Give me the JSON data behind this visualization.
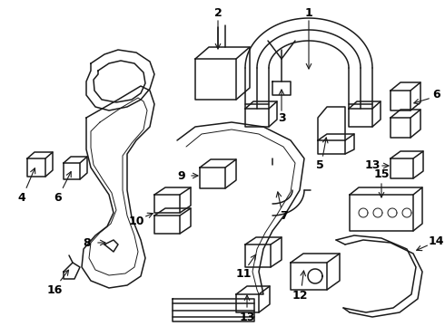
{
  "background_color": "#ffffff",
  "fig_width": 4.9,
  "fig_height": 3.6,
  "dpi": 100,
  "image_data": ""
}
